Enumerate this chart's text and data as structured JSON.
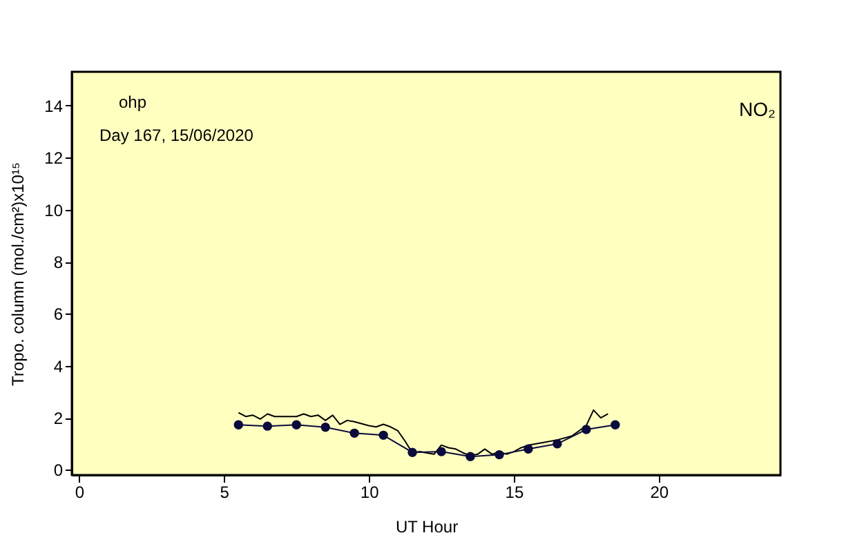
{
  "chart_data": {
    "type": "line",
    "xlabel": "UT Hour",
    "ylabel": "Tropo. column (mol./cm²)x10¹⁵",
    "annotations": [
      "ohp",
      "Day 167, 15/06/2020",
      "NO₂"
    ],
    "xlim": [
      -0.25,
      24.2
    ],
    "xticks": [
      0,
      5,
      10,
      15,
      20
    ],
    "ylim": [
      -0.2,
      15.3
    ],
    "yticks": [
      0,
      2,
      4,
      6,
      8,
      10,
      12,
      14
    ],
    "grid": false,
    "legend": false,
    "series": [
      {
        "color": "#000000",
        "marker": "none",
        "x": [
          5.5,
          5.75,
          6.0,
          6.25,
          6.5,
          6.75,
          7.0,
          7.5,
          7.75,
          8.0,
          8.25,
          8.5,
          8.75,
          9.0,
          9.25,
          9.5,
          10.0,
          10.25,
          10.5,
          10.75,
          11.0,
          11.25,
          11.5,
          11.75,
          12.0,
          12.25,
          12.5,
          12.75,
          13.0,
          13.25,
          13.5,
          13.75,
          14.0,
          14.25,
          14.5,
          14.75,
          15.0,
          15.25,
          15.5,
          16.0,
          16.5,
          17.0,
          17.25,
          17.5,
          17.75,
          18.0,
          18.25
        ],
        "values": [
          2.2,
          2.05,
          2.1,
          1.95,
          2.15,
          2.05,
          2.05,
          2.05,
          2.15,
          2.05,
          2.1,
          1.9,
          2.1,
          1.75,
          1.9,
          1.85,
          1.7,
          1.65,
          1.75,
          1.65,
          1.5,
          1.1,
          0.65,
          0.7,
          0.65,
          0.6,
          0.95,
          0.85,
          0.8,
          0.65,
          0.55,
          0.6,
          0.8,
          0.6,
          0.7,
          0.6,
          0.7,
          0.85,
          0.95,
          1.05,
          1.15,
          1.3,
          1.5,
          1.7,
          2.3,
          2.0,
          2.15
        ]
      },
      {
        "color": "#0a0a3c",
        "marker": "circle",
        "x": [
          5.5,
          6.5,
          7.5,
          8.5,
          9.5,
          10.5,
          11.5,
          12.5,
          13.5,
          14.5,
          15.5,
          16.5,
          17.5,
          18.5
        ],
        "values": [
          1.73,
          1.68,
          1.73,
          1.64,
          1.41,
          1.33,
          0.67,
          0.7,
          0.51,
          0.58,
          0.8,
          1.0,
          1.55,
          1.73
        ]
      }
    ]
  }
}
